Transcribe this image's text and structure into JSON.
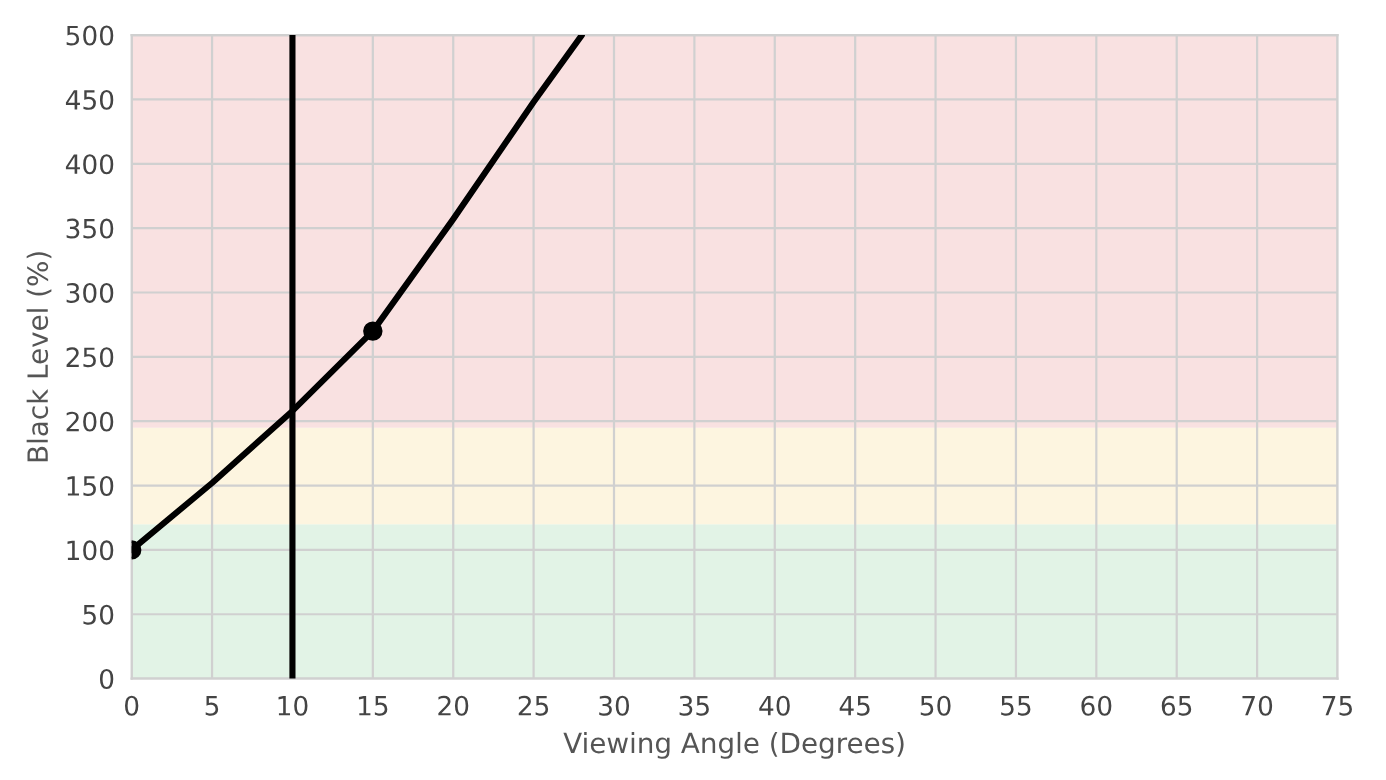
{
  "chart_data": {
    "type": "line",
    "xlabel": "Viewing Angle (Degrees)",
    "ylabel": "Black Level (%)",
    "series": [
      {
        "color": "#000000",
        "x": [
          0,
          5,
          10,
          15,
          20,
          25,
          28
        ],
        "values": [
          100,
          152,
          208,
          270,
          357,
          448,
          500
        ]
      },
      {
        "type": "scatter",
        "color": "#000000",
        "x": [
          0,
          15
        ],
        "values": [
          100,
          270
        ],
        "marker": "circle"
      }
    ],
    "xlim": [
      0,
      75
    ],
    "xticks": [
      0,
      5,
      10,
      15,
      20,
      25,
      30,
      35,
      40,
      45,
      50,
      55,
      60,
      65,
      70,
      75
    ],
    "ylim": [
      0,
      500
    ],
    "yticks": [
      0,
      50,
      100,
      150,
      200,
      250,
      300,
      350,
      400,
      450,
      500
    ],
    "bands": [
      {
        "axis": "y",
        "from": 0,
        "to": 120,
        "color": "#e2f3e6"
      },
      {
        "axis": "y",
        "from": 120,
        "to": 195,
        "color": "#fdf5e0"
      },
      {
        "axis": "y",
        "from": 195,
        "to": 500,
        "color": "#f9e1e1"
      }
    ],
    "ref_lines": [
      {
        "axis": "x",
        "value": 10,
        "color": "#000000",
        "line_style": "solid"
      }
    ],
    "grid": true,
    "legend": false
  }
}
